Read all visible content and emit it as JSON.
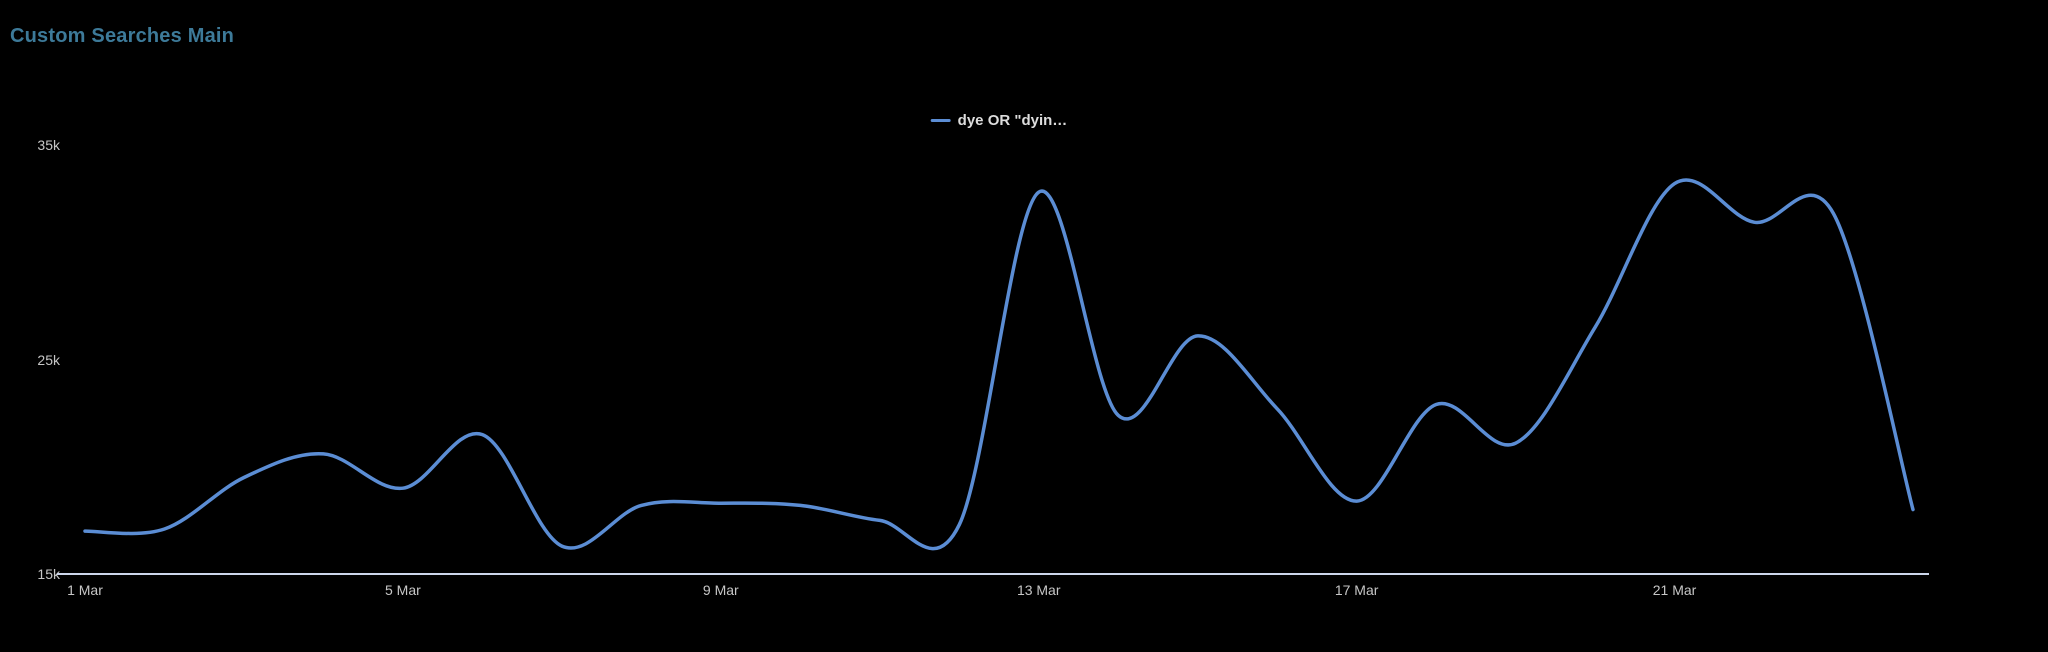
{
  "title": "Custom Searches Main",
  "legend": {
    "items": [
      {
        "label": "dye OR \"dyin…",
        "color": "#5b8dd4"
      }
    ]
  },
  "colors": {
    "background": "#000000",
    "title": "#3d7a99",
    "axis_label": "#c6c6c6",
    "axis_line": "#ccd6eb",
    "series": "#5b8dd4",
    "legend_text": "#dddddd"
  },
  "chart_data": {
    "type": "line",
    "smooth": true,
    "title": "Custom Searches Main",
    "xlabel": "",
    "ylabel": "",
    "ylim": [
      15000,
      35000
    ],
    "x": [
      "1 Mar",
      "2 Mar",
      "3 Mar",
      "4 Mar",
      "5 Mar",
      "6 Mar",
      "7 Mar",
      "8 Mar",
      "9 Mar",
      "10 Mar",
      "11 Mar",
      "12 Mar",
      "13 Mar",
      "14 Mar",
      "15 Mar",
      "16 Mar",
      "17 Mar",
      "18 Mar",
      "19 Mar",
      "20 Mar",
      "21 Mar",
      "22 Mar",
      "23 Mar",
      "24 Mar"
    ],
    "series": [
      {
        "name": "dye OR \"dyin…",
        "values": [
          17000,
          17100,
          19500,
          20600,
          19000,
          21500,
          16300,
          18200,
          18300,
          18200,
          17500,
          17300,
          32800,
          22400,
          26100,
          22700,
          18400,
          22900,
          21100,
          26500,
          33200,
          31400,
          31800,
          18000
        ]
      }
    ],
    "yticks": [
      {
        "value": 15000,
        "label": "15k"
      },
      {
        "value": 25000,
        "label": "25k"
      },
      {
        "value": 35000,
        "label": "35k"
      }
    ],
    "xticks": [
      {
        "index": 0,
        "label": "1 Mar"
      },
      {
        "index": 4,
        "label": "5 Mar"
      },
      {
        "index": 8,
        "label": "9 Mar"
      },
      {
        "index": 12,
        "label": "13 Mar"
      },
      {
        "index": 16,
        "label": "17 Mar"
      },
      {
        "index": 20,
        "label": "21 Mar"
      }
    ],
    "grid": false,
    "legend_position": "top-center"
  }
}
